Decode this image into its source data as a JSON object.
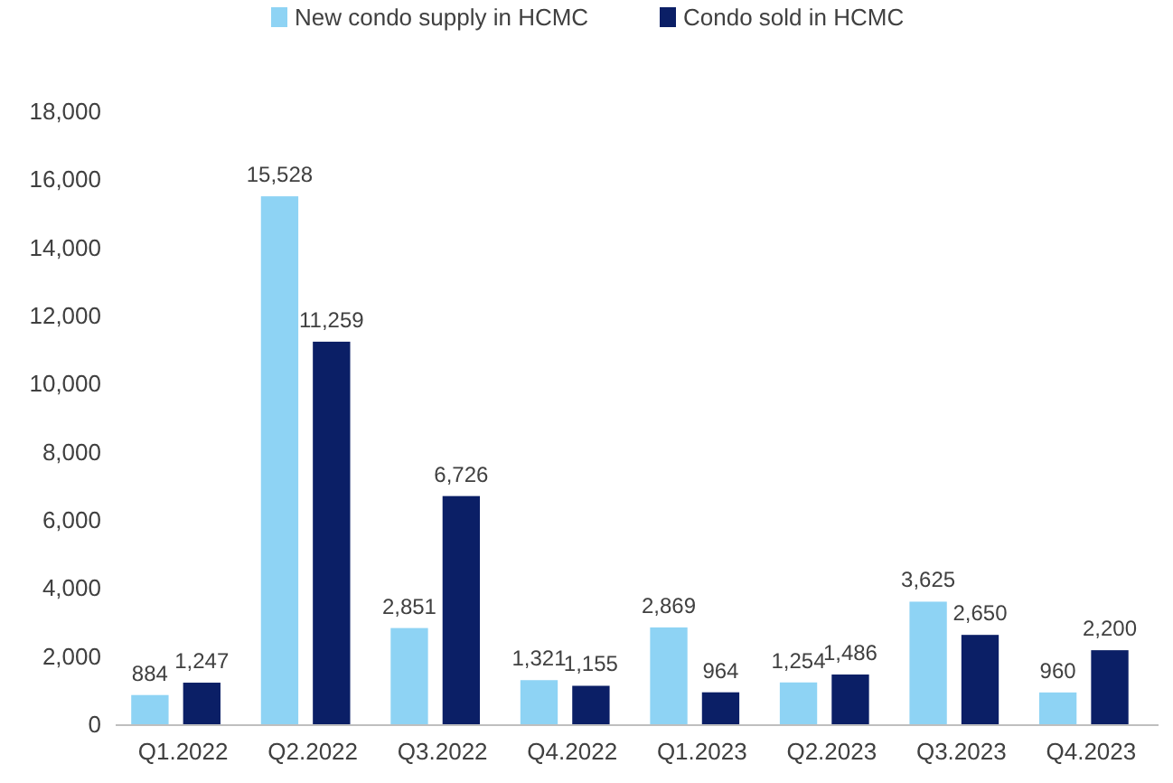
{
  "chart_data": {
    "type": "bar",
    "categories": [
      "Q1.2022",
      "Q2.2022",
      "Q3.2022",
      "Q4.2022",
      "Q1.2023",
      "Q2.2023",
      "Q3.2023",
      "Q4.2023"
    ],
    "series": [
      {
        "name": "New condo supply in HCMC",
        "color": "#8ed3f4",
        "values": [
          884,
          15528,
          2851,
          1321,
          2869,
          1254,
          3625,
          960
        ],
        "value_labels": [
          "884",
          "15,528",
          "2,851",
          "1,321",
          "2,869",
          "1,254",
          "3,625",
          "960"
        ]
      },
      {
        "name": "Condo sold in HCMC",
        "color": "#0b1f66",
        "values": [
          1247,
          11259,
          6726,
          1155,
          964,
          1486,
          2650,
          2200
        ],
        "value_labels": [
          "1,247",
          "11,259",
          "6,726",
          "1,155",
          "964",
          "1,486",
          "2,650",
          "2,200"
        ]
      }
    ],
    "ylim": [
      0,
      18000
    ],
    "yticks": [
      0,
      {
        "value": 2000,
        "label": "2,000"
      },
      {
        "value": 4000,
        "label": "4,000"
      },
      {
        "value": 6000,
        "label": "6,000"
      },
      {
        "value": 8000,
        "label": "8,000"
      },
      {
        "value": 10000,
        "label": "10,000"
      },
      {
        "value": 12000,
        "label": "12,000"
      },
      {
        "value": 14000,
        "label": "14,000"
      },
      {
        "value": 16000,
        "label": "16,000"
      },
      {
        "value": 18000,
        "label": "18,000"
      }
    ],
    "legend": "top"
  }
}
